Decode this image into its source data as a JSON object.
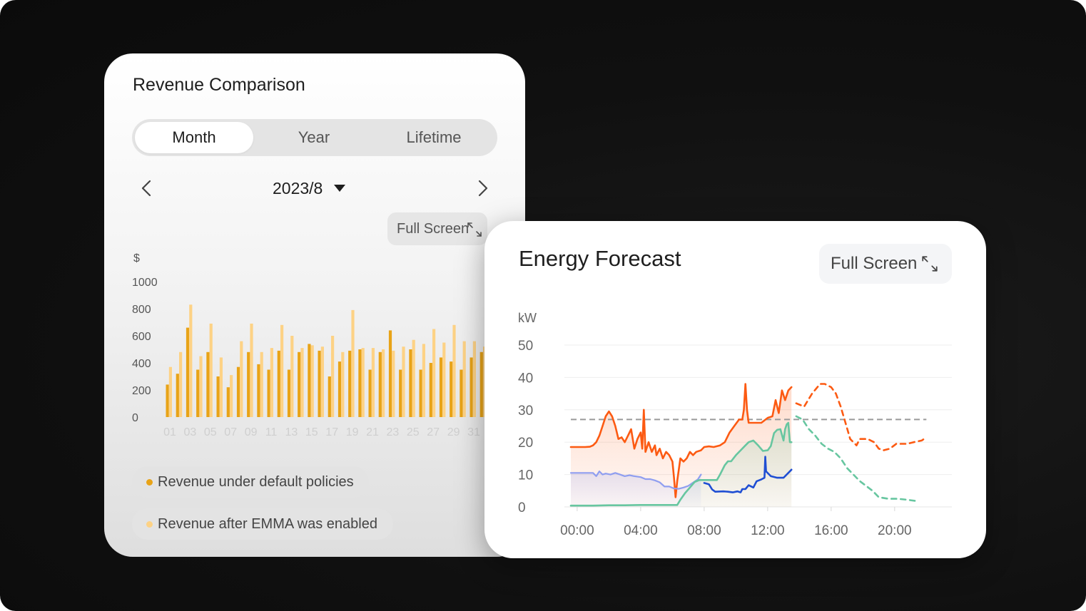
{
  "revenue_card": {
    "title": "Revenue Comparison",
    "tabs": [
      {
        "label": "Month",
        "active": true
      },
      {
        "label": "Year",
        "active": false
      },
      {
        "label": "Lifetime",
        "active": false
      }
    ],
    "selected_month": "2023/8",
    "full_screen_label": "Full Screen",
    "legend": [
      {
        "label": "Revenue under default policies",
        "color": "#e8a317"
      },
      {
        "label": "Revenue after EMMA was enabled",
        "color": "#fdd285"
      }
    ]
  },
  "forecast_card": {
    "title": "Energy Forecast",
    "full_screen_label": "Full Screen"
  },
  "chart_data": [
    {
      "type": "bar",
      "title": "Revenue Comparison",
      "ylabel": "$",
      "ylim": [
        0,
        1000
      ],
      "yticks": [
        0,
        200,
        400,
        600,
        800,
        1000
      ],
      "categories": [
        "01",
        "02",
        "03",
        "04",
        "05",
        "06",
        "07",
        "08",
        "09",
        "10",
        "11",
        "12",
        "13",
        "14",
        "15",
        "16",
        "17",
        "18",
        "19",
        "20",
        "21",
        "22",
        "23",
        "24",
        "25",
        "26",
        "27",
        "28",
        "29",
        "30",
        "31",
        "32"
      ],
      "xtick_labels": [
        "01",
        "03",
        "05",
        "07",
        "09",
        "11",
        "13",
        "15",
        "17",
        "19",
        "21",
        "23",
        "25",
        "27",
        "29",
        "31"
      ],
      "series": [
        {
          "name": "Revenue under default policies",
          "color": "#e8a317",
          "values": [
            240,
            320,
            660,
            350,
            480,
            300,
            220,
            370,
            480,
            390,
            350,
            490,
            350,
            480,
            540,
            490,
            300,
            410,
            490,
            500,
            350,
            480,
            640,
            350,
            500,
            350,
            400,
            440,
            410,
            350,
            440,
            480
          ]
        },
        {
          "name": "Revenue after EMMA was enabled",
          "color": "#fdd285",
          "values": [
            370,
            480,
            830,
            450,
            690,
            440,
            310,
            560,
            690,
            480,
            510,
            680,
            600,
            510,
            530,
            520,
            600,
            480,
            790,
            510,
            510,
            500,
            490,
            520,
            570,
            540,
            650,
            550,
            680,
            560,
            560,
            520
          ]
        }
      ]
    },
    {
      "type": "line",
      "title": "Energy Forecast",
      "ylabel": "kW",
      "ylim": [
        0,
        50
      ],
      "yticks": [
        0,
        10,
        20,
        30,
        40,
        50
      ],
      "xlim": [
        -0.4,
        22.3
      ],
      "xticks": [
        "00:00",
        "04:00",
        "08:00",
        "12:00",
        "16:00",
        "20:00"
      ],
      "reference_line": 27,
      "series": [
        {
          "name": "orange-actual",
          "color": "#fc5a12",
          "style": "solid",
          "fill": true,
          "points": [
            [
              -0.4,
              18.5
            ],
            [
              0,
              18.5
            ],
            [
              0.5,
              18.5
            ],
            [
              0.8,
              18.6
            ],
            [
              1.0,
              19
            ],
            [
              1.2,
              20
            ],
            [
              1.4,
              22
            ],
            [
              1.6,
              25
            ],
            [
              1.8,
              28
            ],
            [
              2.0,
              29.5
            ],
            [
              2.2,
              28
            ],
            [
              2.4,
              25
            ],
            [
              2.6,
              21
            ],
            [
              2.8,
              21.5
            ],
            [
              3.0,
              20
            ],
            [
              3.2,
              22
            ],
            [
              3.4,
              24
            ],
            [
              3.6,
              18
            ],
            [
              3.8,
              21
            ],
            [
              4.0,
              23
            ],
            [
              4.1,
              18
            ],
            [
              4.2,
              30
            ],
            [
              4.3,
              17
            ],
            [
              4.5,
              20
            ],
            [
              4.7,
              17
            ],
            [
              4.9,
              19
            ],
            [
              5.0,
              16
            ],
            [
              5.2,
              18
            ],
            [
              5.4,
              15
            ],
            [
              5.6,
              17
            ],
            [
              5.8,
              16
            ],
            [
              6.0,
              14
            ],
            [
              6.1,
              9
            ],
            [
              6.2,
              3
            ],
            [
              6.3,
              8
            ],
            [
              6.5,
              15
            ],
            [
              6.7,
              14
            ],
            [
              6.9,
              15
            ],
            [
              7.1,
              17
            ],
            [
              7.3,
              16
            ],
            [
              7.5,
              17
            ],
            [
              7.8,
              17.5
            ],
            [
              8.0,
              18.5
            ],
            [
              8.3,
              18.7
            ],
            [
              8.6,
              18.5
            ],
            [
              9.0,
              19
            ],
            [
              9.3,
              20
            ],
            [
              9.6,
              23
            ],
            [
              9.9,
              25
            ],
            [
              10.2,
              27
            ],
            [
              10.4,
              27
            ],
            [
              10.5,
              30
            ],
            [
              10.6,
              38
            ],
            [
              10.7,
              30
            ],
            [
              10.8,
              26
            ],
            [
              11.0,
              26
            ],
            [
              11.3,
              26
            ],
            [
              11.6,
              26
            ],
            [
              12.0,
              27.5
            ],
            [
              12.3,
              28
            ],
            [
              12.5,
              33
            ],
            [
              12.7,
              29
            ],
            [
              12.9,
              36
            ],
            [
              13.1,
              33
            ],
            [
              13.3,
              36
            ],
            [
              13.5,
              37
            ]
          ]
        },
        {
          "name": "orange-forecast",
          "color": "#fc5a12",
          "style": "dashed",
          "fill": false,
          "points": [
            [
              13.8,
              32
            ],
            [
              14.3,
              31
            ],
            [
              14.8,
              35
            ],
            [
              15.3,
              38
            ],
            [
              15.6,
              38
            ],
            [
              16.0,
              37
            ],
            [
              16.3,
              35
            ],
            [
              16.6,
              31
            ],
            [
              16.9,
              26
            ],
            [
              17.2,
              21
            ],
            [
              17.6,
              19
            ],
            [
              17.8,
              21
            ],
            [
              18.3,
              21
            ],
            [
              18.7,
              20
            ],
            [
              19.0,
              18
            ],
            [
              19.3,
              17.5
            ],
            [
              19.7,
              18
            ],
            [
              20.1,
              19.5
            ],
            [
              20.8,
              19.5
            ],
            [
              21.2,
              20
            ],
            [
              21.7,
              20.5
            ],
            [
              22.0,
              21.5
            ]
          ]
        },
        {
          "name": "blue-actual",
          "color": "#8f9ef0",
          "style": "solid",
          "fill": true,
          "points": [
            [
              -0.4,
              10.5
            ],
            [
              0.5,
              10.5
            ],
            [
              1.0,
              10.5
            ],
            [
              1.2,
              9.5
            ],
            [
              1.4,
              11
            ],
            [
              1.6,
              10
            ],
            [
              1.8,
              10.3
            ],
            [
              2.1,
              10
            ],
            [
              2.4,
              10.5
            ],
            [
              2.7,
              10
            ],
            [
              3.0,
              9.5
            ],
            [
              3.3,
              9.8
            ],
            [
              3.6,
              9.5
            ],
            [
              4.0,
              9.2
            ],
            [
              4.3,
              8.6
            ],
            [
              4.6,
              8.6
            ],
            [
              4.9,
              8.2
            ],
            [
              5.2,
              7.6
            ],
            [
              5.5,
              6.3
            ],
            [
              5.8,
              6.3
            ],
            [
              6.1,
              5.7
            ],
            [
              6.4,
              5.6
            ],
            [
              6.7,
              6
            ],
            [
              7.0,
              6.5
            ],
            [
              7.3,
              7.5
            ],
            [
              7.6,
              8.5
            ],
            [
              7.8,
              10
            ]
          ]
        },
        {
          "name": "blue-dark",
          "color": "#1f4ed3",
          "style": "solid",
          "fill": false,
          "points": [
            [
              8.0,
              7.4
            ],
            [
              8.3,
              7.0
            ],
            [
              8.5,
              5.4
            ],
            [
              8.7,
              4.7
            ],
            [
              9.2,
              4.8
            ],
            [
              9.5,
              4.7
            ],
            [
              9.8,
              4.5
            ],
            [
              10.1,
              4.8
            ],
            [
              10.3,
              4.5
            ],
            [
              10.4,
              5.5
            ],
            [
              10.6,
              5.5
            ],
            [
              10.8,
              6.7
            ],
            [
              11.1,
              6.0
            ],
            [
              11.3,
              7.9
            ],
            [
              11.6,
              8.5
            ],
            [
              11.8,
              9.0
            ],
            [
              11.85,
              15.5
            ],
            [
              11.9,
              11.0
            ],
            [
              12.2,
              9.5
            ],
            [
              12.6,
              9.0
            ],
            [
              13.0,
              9.0
            ],
            [
              13.3,
              10.5
            ],
            [
              13.5,
              11.5
            ]
          ]
        },
        {
          "name": "green-actual",
          "color": "#67c6a0",
          "style": "solid",
          "fill": true,
          "points": [
            [
              -0.4,
              0.4
            ],
            [
              1.0,
              0.4
            ],
            [
              2.0,
              0.5
            ],
            [
              3.0,
              0.5
            ],
            [
              4.0,
              0.6
            ],
            [
              5.0,
              0.6
            ],
            [
              6.0,
              0.6
            ],
            [
              6.3,
              0.6
            ],
            [
              6.5,
              2.2
            ],
            [
              6.8,
              4.3
            ],
            [
              7.1,
              6
            ],
            [
              7.4,
              7.7
            ],
            [
              7.7,
              8.3
            ],
            [
              8.0,
              8.3
            ],
            [
              8.4,
              8.3
            ],
            [
              8.8,
              8.3
            ],
            [
              9.0,
              10
            ],
            [
              9.3,
              12.9
            ],
            [
              9.5,
              14.1
            ],
            [
              9.7,
              14.1
            ],
            [
              10.0,
              16
            ],
            [
              10.3,
              17.5
            ],
            [
              10.6,
              19
            ],
            [
              10.8,
              20
            ],
            [
              11.1,
              20.5
            ],
            [
              11.4,
              19
            ],
            [
              11.7,
              17.3
            ],
            [
              12.0,
              17.5
            ],
            [
              12.2,
              18.8
            ],
            [
              12.4,
              22.8
            ],
            [
              12.6,
              23.8
            ],
            [
              12.8,
              24
            ],
            [
              13.0,
              20.5
            ],
            [
              13.1,
              24
            ],
            [
              13.2,
              25.5
            ],
            [
              13.3,
              26
            ],
            [
              13.4,
              20
            ],
            [
              13.5,
              20
            ]
          ]
        },
        {
          "name": "green-forecast",
          "color": "#67c6a0",
          "style": "dashed",
          "fill": false,
          "points": [
            [
              13.8,
              28
            ],
            [
              14.2,
              27
            ],
            [
              14.6,
              24
            ],
            [
              15.0,
              22
            ],
            [
              15.4,
              19.5
            ],
            [
              15.8,
              18
            ],
            [
              16.2,
              17
            ],
            [
              16.6,
              15
            ],
            [
              17.0,
              12
            ],
            [
              17.4,
              10
            ],
            [
              17.8,
              8
            ],
            [
              18.2,
              6.5
            ],
            [
              18.6,
              5
            ],
            [
              19.0,
              3
            ],
            [
              19.6,
              2.5
            ],
            [
              20.2,
              2.5
            ],
            [
              20.8,
              2.2
            ],
            [
              21.4,
              1.8
            ]
          ]
        }
      ]
    }
  ]
}
